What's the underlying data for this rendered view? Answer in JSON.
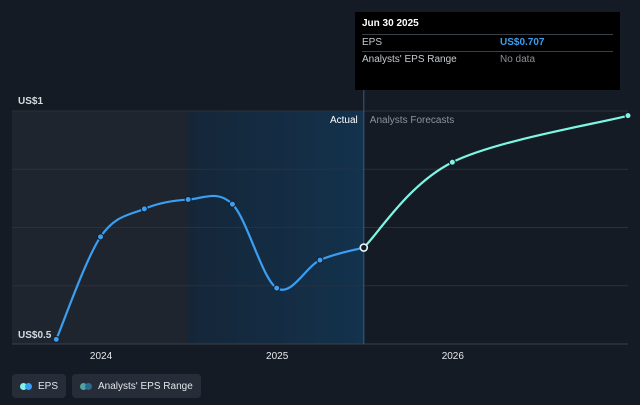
{
  "colors": {
    "background": "#151b24",
    "eps_actual": "#3a9ff2",
    "eps_forecast": "#7ff5e6",
    "grid": "#2a313b",
    "past_region": "#1e252f",
    "highlight_region": "#13324d"
  },
  "chart_data": {
    "type": "line",
    "ylim": [
      0.5,
      1.0
    ],
    "y_ticks": [
      {
        "value": 1.0,
        "label": "US$1"
      },
      {
        "value": 0.5,
        "label": "US$0.5"
      }
    ],
    "x_ticks": [
      {
        "value": "2024",
        "label": "2024"
      },
      {
        "value": "2025",
        "label": "2025"
      },
      {
        "value": "2026",
        "label": "2026"
      }
    ],
    "x_range": [
      "2023-06-30",
      "2026-12-31"
    ],
    "grid": true,
    "series": [
      {
        "name": "EPS",
        "kind": "actual",
        "x": [
          "2023-09-30",
          "2023-12-31",
          "2024-03-31",
          "2024-06-30",
          "2024-09-30",
          "2024-12-31",
          "2025-03-31",
          "2025-06-30"
        ],
        "y": [
          0.51,
          0.73,
          0.79,
          0.81,
          0.8,
          0.62,
          0.68,
          0.707
        ]
      },
      {
        "name": "EPS Forecast",
        "kind": "forecast",
        "x": [
          "2025-06-30",
          "2025-12-31",
          "2026-12-31"
        ],
        "y": [
          0.707,
          0.89,
          0.99
        ]
      }
    ],
    "regions": {
      "past_end": "2024-06-30",
      "actual_label": "Actual",
      "forecast_label": "Analysts Forecasts",
      "divider": "2025-06-30"
    }
  },
  "tooltip": {
    "title": "Jun 30 2025",
    "rows": [
      {
        "label": "EPS",
        "value": "US$0.707"
      },
      {
        "label": "Analysts' EPS Range",
        "value": "No data"
      }
    ]
  },
  "legend": {
    "items": [
      {
        "label": "EPS"
      },
      {
        "label": "Analysts' EPS Range"
      }
    ]
  }
}
